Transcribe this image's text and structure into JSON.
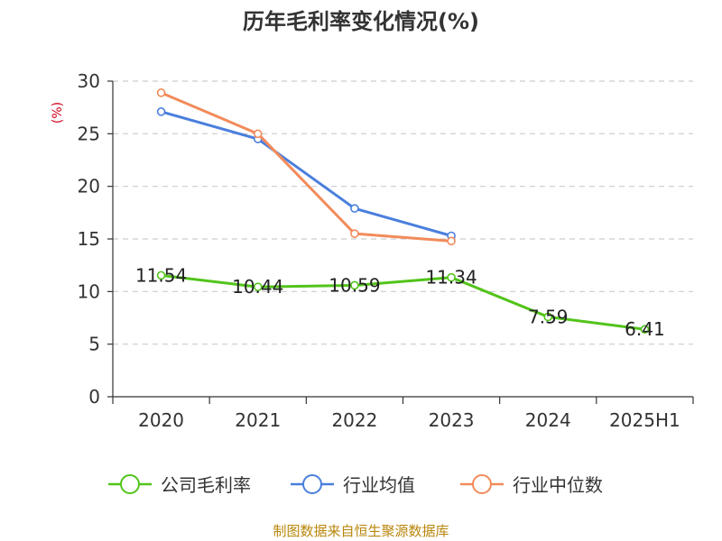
{
  "chart_data": {
    "type": "line",
    "title": "历年毛利率变化情况(%)",
    "ylabel": "(%)",
    "xlabel": "",
    "categories": [
      "2020",
      "2021",
      "2022",
      "2023",
      "2024",
      "2025H1"
    ],
    "ylim": [
      0,
      30
    ],
    "yticks": [
      0,
      5,
      10,
      15,
      20,
      25,
      30
    ],
    "grid": true,
    "legend_position": "bottom",
    "series": [
      {
        "name": "公司毛利率",
        "color": "#52c41a",
        "values": [
          11.54,
          10.44,
          10.59,
          11.34,
          7.59,
          6.41
        ],
        "labels": [
          "11.54",
          "10.44",
          "10.59",
          "11.34",
          "7.59",
          "6.41"
        ]
      },
      {
        "name": "行业均值",
        "color": "#4a7fdc",
        "values": [
          27.1,
          24.5,
          17.9,
          15.3,
          null,
          null
        ]
      },
      {
        "name": "行业中位数",
        "color": "#f28b5b",
        "values": [
          28.9,
          25.0,
          15.5,
          14.8,
          null,
          null
        ]
      }
    ]
  },
  "source": "制图数据来自恒生聚源数据库"
}
